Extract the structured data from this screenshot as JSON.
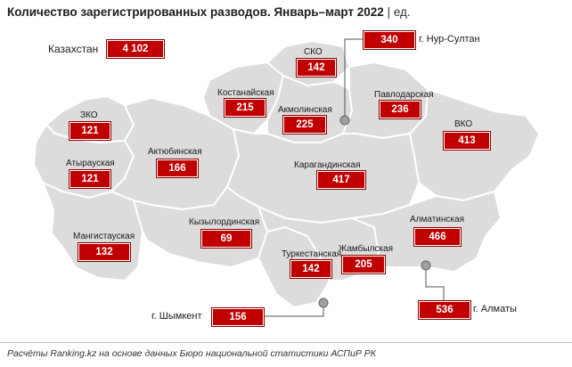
{
  "title": {
    "main": "Количество зарегистрированных разводов. Январь–март 2022",
    "separator": "|",
    "unit": "ед."
  },
  "total": {
    "label": "Казахстан",
    "value": "4 102"
  },
  "regions": [
    {
      "id": "sko",
      "name": "СКО",
      "value": "142"
    },
    {
      "id": "kostanay",
      "name": "Костанайская",
      "value": "215"
    },
    {
      "id": "akmola",
      "name": "Акмолинская",
      "value": "225"
    },
    {
      "id": "pavlodar",
      "name": "Павлодарская",
      "value": "236"
    },
    {
      "id": "zko",
      "name": "ЗКО",
      "value": "121"
    },
    {
      "id": "vko",
      "name": "ВКО",
      "value": "413"
    },
    {
      "id": "aktobe",
      "name": "Актюбинская",
      "value": "166"
    },
    {
      "id": "atyrau",
      "name": "Атырауская",
      "value": "121"
    },
    {
      "id": "karaganda",
      "name": "Карагандинская",
      "value": "417"
    },
    {
      "id": "kyzylorda",
      "name": "Кызылординская",
      "value": "69"
    },
    {
      "id": "almaty_reg",
      "name": "Алматинская",
      "value": "466"
    },
    {
      "id": "mangystau",
      "name": "Мангистауская",
      "value": "132"
    },
    {
      "id": "turkestan",
      "name": "Туркестанская",
      "value": "142"
    },
    {
      "id": "zhambyl",
      "name": "Жамбылская",
      "value": "205"
    }
  ],
  "cities": [
    {
      "id": "nur_sultan",
      "name": "г. Нур-Султан",
      "value": "340"
    },
    {
      "id": "shymkent",
      "name": "г. Шымкент",
      "value": "156"
    },
    {
      "id": "almaty",
      "name": "г. Алматы",
      "value": "536"
    }
  ],
  "footer": "Расчёты Ranking.kz на основе данных Бюро национальной статистики АСПиР РК",
  "colors": {
    "badge": "#c00000",
    "map_fill": "#dcdcdc",
    "map_border": "#ffffff",
    "city_dot": "#a0a0a0"
  }
}
